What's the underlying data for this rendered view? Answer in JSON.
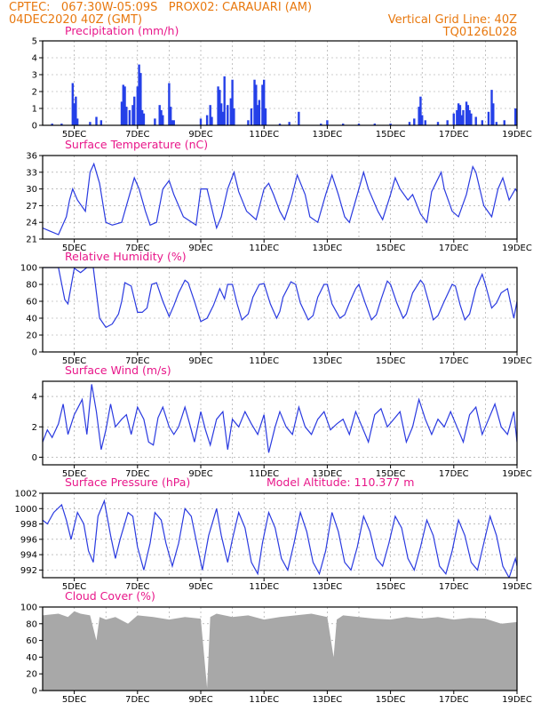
{
  "header": {
    "line1": "CPTEC:   067:30W-05:09S   PROX02: CARAUARI (AM)",
    "line2_left": "04DEC2020 40Z (GMT)",
    "line2_right": "Vertical Grid Line: 40Z",
    "line3_right": "TQ0126L028"
  },
  "annotations": {
    "model_altitude": "Model Altitude: 110.377 m"
  },
  "x_axis": {
    "labels": [
      "5DEC",
      "7DEC",
      "9DEC",
      "11DEC",
      "13DEC",
      "15DEC",
      "17DEC",
      "19DEC"
    ],
    "day_start": 4.0,
    "day_end": 19.0
  },
  "colors": {
    "header": "#e8780e",
    "title": "#e8178a",
    "line": "#2a3ae0",
    "bar": "#2540e8",
    "cloud": "#a8a8a8",
    "grid": "#9a9a9a"
  },
  "chart_data": [
    {
      "type": "bar",
      "title": "Precipitation (mm/h)",
      "ylim": [
        0,
        5
      ],
      "yticks": [
        "0",
        "1",
        "2",
        "3",
        "4",
        "5"
      ],
      "grid": true,
      "bars": [
        {
          "x": 4.3,
          "y": 0.1
        },
        {
          "x": 4.6,
          "y": 0.1
        },
        {
          "x": 4.95,
          "y": 2.5
        },
        {
          "x": 5.0,
          "y": 1.3
        },
        {
          "x": 5.05,
          "y": 1.7
        },
        {
          "x": 5.1,
          "y": 0.4
        },
        {
          "x": 5.5,
          "y": 0.2
        },
        {
          "x": 5.7,
          "y": 0.5
        },
        {
          "x": 5.85,
          "y": 0.3
        },
        {
          "x": 6.5,
          "y": 1.4
        },
        {
          "x": 6.55,
          "y": 2.4
        },
        {
          "x": 6.6,
          "y": 2.3
        },
        {
          "x": 6.65,
          "y": 1.1
        },
        {
          "x": 6.75,
          "y": 0.9
        },
        {
          "x": 6.85,
          "y": 1.2
        },
        {
          "x": 6.9,
          "y": 1.7
        },
        {
          "x": 7.0,
          "y": 2.3
        },
        {
          "x": 7.05,
          "y": 3.6
        },
        {
          "x": 7.1,
          "y": 3.1
        },
        {
          "x": 7.15,
          "y": 0.9
        },
        {
          "x": 7.2,
          "y": 0.7
        },
        {
          "x": 7.55,
          "y": 0.4
        },
        {
          "x": 7.7,
          "y": 1.2
        },
        {
          "x": 7.75,
          "y": 0.9
        },
        {
          "x": 7.8,
          "y": 0.6
        },
        {
          "x": 8.0,
          "y": 2.5
        },
        {
          "x": 8.05,
          "y": 1.1
        },
        {
          "x": 8.1,
          "y": 0.3
        },
        {
          "x": 8.15,
          "y": 0.3
        },
        {
          "x": 9.0,
          "y": 0.4
        },
        {
          "x": 9.2,
          "y": 0.6
        },
        {
          "x": 9.3,
          "y": 1.2
        },
        {
          "x": 9.35,
          "y": 0.5
        },
        {
          "x": 9.55,
          "y": 2.3
        },
        {
          "x": 9.6,
          "y": 2.1
        },
        {
          "x": 9.65,
          "y": 1.3
        },
        {
          "x": 9.7,
          "y": 0.8
        },
        {
          "x": 9.75,
          "y": 2.9
        },
        {
          "x": 9.85,
          "y": 1.2
        },
        {
          "x": 9.95,
          "y": 1.6
        },
        {
          "x": 10.0,
          "y": 2.7
        },
        {
          "x": 10.05,
          "y": 1.0
        },
        {
          "x": 10.5,
          "y": 0.3
        },
        {
          "x": 10.6,
          "y": 1.0
        },
        {
          "x": 10.7,
          "y": 2.7
        },
        {
          "x": 10.75,
          "y": 2.4
        },
        {
          "x": 10.8,
          "y": 1.2
        },
        {
          "x": 10.85,
          "y": 1.5
        },
        {
          "x": 10.95,
          "y": 2.4
        },
        {
          "x": 11.0,
          "y": 2.7
        },
        {
          "x": 11.05,
          "y": 1.0
        },
        {
          "x": 11.5,
          "y": 0.1
        },
        {
          "x": 11.8,
          "y": 0.2
        },
        {
          "x": 12.1,
          "y": 0.8
        },
        {
          "x": 12.8,
          "y": 0.1
        },
        {
          "x": 13.0,
          "y": 0.3
        },
        {
          "x": 13.5,
          "y": 0.1
        },
        {
          "x": 14.0,
          "y": 0.1
        },
        {
          "x": 14.5,
          "y": 0.1
        },
        {
          "x": 15.0,
          "y": 0.1
        },
        {
          "x": 15.6,
          "y": 0.2
        },
        {
          "x": 15.75,
          "y": 0.4
        },
        {
          "x": 15.9,
          "y": 1.1
        },
        {
          "x": 15.95,
          "y": 1.7
        },
        {
          "x": 16.0,
          "y": 0.6
        },
        {
          "x": 16.1,
          "y": 0.3
        },
        {
          "x": 16.5,
          "y": 0.2
        },
        {
          "x": 16.8,
          "y": 0.3
        },
        {
          "x": 17.0,
          "y": 0.7
        },
        {
          "x": 17.1,
          "y": 0.9
        },
        {
          "x": 17.15,
          "y": 1.3
        },
        {
          "x": 17.2,
          "y": 1.2
        },
        {
          "x": 17.25,
          "y": 0.6
        },
        {
          "x": 17.3,
          "y": 0.9
        },
        {
          "x": 17.4,
          "y": 1.4
        },
        {
          "x": 17.45,
          "y": 1.2
        },
        {
          "x": 17.5,
          "y": 0.9
        },
        {
          "x": 17.55,
          "y": 0.7
        },
        {
          "x": 17.7,
          "y": 0.5
        },
        {
          "x": 17.9,
          "y": 0.3
        },
        {
          "x": 18.1,
          "y": 0.8
        },
        {
          "x": 18.2,
          "y": 2.1
        },
        {
          "x": 18.25,
          "y": 1.3
        },
        {
          "x": 18.35,
          "y": 0.2
        },
        {
          "x": 18.6,
          "y": 0.3
        },
        {
          "x": 18.95,
          "y": 1.0
        }
      ]
    },
    {
      "type": "line",
      "title": "Surface Temperature (nC)",
      "ylim": [
        21,
        36
      ],
      "yticks": [
        "21",
        "24",
        "27",
        "30",
        "33",
        "36"
      ],
      "grid": true,
      "x": [
        4.0,
        4.2,
        4.5,
        4.75,
        4.85,
        4.95,
        5.1,
        5.35,
        5.5,
        5.62,
        5.8,
        6.0,
        6.2,
        6.5,
        6.8,
        6.9,
        7.05,
        7.25,
        7.4,
        7.6,
        7.8,
        8.0,
        8.15,
        8.45,
        8.85,
        9.0,
        9.2,
        9.5,
        9.65,
        9.85,
        10.05,
        10.2,
        10.45,
        10.75,
        11.0,
        11.15,
        11.3,
        11.5,
        11.65,
        11.85,
        12.05,
        12.3,
        12.45,
        12.7,
        12.95,
        13.15,
        13.35,
        13.55,
        13.7,
        13.95,
        14.15,
        14.3,
        14.6,
        14.75,
        15.0,
        15.15,
        15.3,
        15.55,
        15.7,
        15.95,
        16.15,
        16.3,
        16.6,
        16.7,
        16.95,
        17.15,
        17.4,
        17.6,
        17.7,
        17.95,
        18.2,
        18.4,
        18.55,
        18.75,
        18.95,
        19.0
      ],
      "y": [
        23,
        22.5,
        21.8,
        25,
        28,
        30,
        28,
        26,
        33,
        34.5,
        31,
        24,
        23.5,
        24,
        30,
        32,
        30,
        26,
        23.5,
        24,
        30,
        31.5,
        29,
        25,
        23.5,
        30,
        30,
        23,
        25,
        30,
        33,
        29.5,
        26,
        24.5,
        30,
        31,
        29,
        26,
        24.5,
        28,
        32.5,
        29,
        25,
        24,
        29,
        32.5,
        29,
        25,
        24,
        29,
        33,
        30,
        26,
        24.5,
        29,
        32,
        30,
        28,
        29,
        25.5,
        24,
        29.5,
        33,
        30,
        26,
        25,
        29,
        34,
        33,
        27,
        25,
        30,
        32,
        28,
        30,
        29.5
      ]
    },
    {
      "type": "line",
      "title": "Relative Humidity (%)",
      "ylim": [
        0,
        100
      ],
      "yticks": [
        "0",
        "20",
        "40",
        "60",
        "80",
        "100"
      ],
      "grid": true,
      "x": [
        4.0,
        4.2,
        4.5,
        4.7,
        4.8,
        5.0,
        5.2,
        5.4,
        5.6,
        5.8,
        6.0,
        6.2,
        6.4,
        6.5,
        6.6,
        6.8,
        7.0,
        7.15,
        7.3,
        7.45,
        7.6,
        7.8,
        8.0,
        8.15,
        8.3,
        8.5,
        8.6,
        8.8,
        9.0,
        9.2,
        9.4,
        9.6,
        9.75,
        9.85,
        10.0,
        10.15,
        10.3,
        10.5,
        10.65,
        10.85,
        11.0,
        11.2,
        11.4,
        11.5,
        11.6,
        11.85,
        12.0,
        12.15,
        12.4,
        12.55,
        12.7,
        12.9,
        13.0,
        13.15,
        13.4,
        13.55,
        13.7,
        13.9,
        14.0,
        14.2,
        14.4,
        14.55,
        14.7,
        14.9,
        15.0,
        15.2,
        15.4,
        15.5,
        15.7,
        15.95,
        16.05,
        16.2,
        16.35,
        16.5,
        16.7,
        16.95,
        17.05,
        17.2,
        17.35,
        17.5,
        17.7,
        17.9,
        18.0,
        18.2,
        18.35,
        18.5,
        18.7,
        18.9,
        19.0
      ],
      "y": [
        100,
        100,
        100,
        62,
        57,
        99,
        94,
        100,
        100,
        40,
        29,
        33,
        45,
        60,
        82,
        78,
        47,
        47,
        52,
        80,
        82,
        60,
        42,
        55,
        70,
        85,
        82,
        60,
        36,
        40,
        55,
        75,
        63,
        80,
        80,
        57,
        38,
        45,
        65,
        80,
        81,
        57,
        40,
        48,
        65,
        83,
        80,
        58,
        38,
        43,
        65,
        80,
        80,
        57,
        40,
        44,
        58,
        75,
        80,
        58,
        38,
        44,
        62,
        84,
        80,
        58,
        40,
        45,
        70,
        85,
        80,
        60,
        38,
        43,
        60,
        80,
        78,
        56,
        38,
        45,
        75,
        92,
        80,
        52,
        58,
        70,
        75,
        40,
        60
      ]
    },
    {
      "type": "line",
      "title": "Surface Wind (m/s)",
      "ylim": [
        -0.5,
        5
      ],
      "yticks": [
        "0",
        "2",
        "4"
      ],
      "grid": true,
      "x": [
        4.0,
        4.15,
        4.3,
        4.5,
        4.65,
        4.8,
        5.0,
        5.1,
        5.25,
        5.4,
        5.55,
        5.7,
        5.85,
        6.0,
        6.15,
        6.3,
        6.5,
        6.65,
        6.8,
        7.0,
        7.2,
        7.35,
        7.5,
        7.65,
        7.8,
        8.0,
        8.15,
        8.3,
        8.5,
        8.65,
        8.8,
        9.0,
        9.15,
        9.3,
        9.5,
        9.7,
        9.85,
        10.0,
        10.2,
        10.4,
        10.6,
        10.8,
        11.0,
        11.15,
        11.35,
        11.5,
        11.7,
        11.9,
        12.1,
        12.3,
        12.5,
        12.7,
        12.9,
        13.1,
        13.3,
        13.5,
        13.7,
        13.9,
        14.1,
        14.3,
        14.5,
        14.7,
        14.9,
        15.1,
        15.3,
        15.5,
        15.7,
        15.9,
        16.1,
        16.3,
        16.5,
        16.7,
        16.9,
        17.1,
        17.3,
        17.5,
        17.7,
        17.9,
        18.1,
        18.3,
        18.5,
        18.7,
        18.9,
        19.0
      ],
      "y": [
        1.0,
        1.8,
        1.3,
        2.2,
        3.5,
        1.5,
        2.8,
        3.2,
        3.8,
        1.5,
        4.8,
        3.0,
        0.5,
        1.8,
        3.5,
        2.0,
        2.5,
        2.8,
        1.5,
        3.3,
        2.5,
        1.0,
        0.8,
        2.6,
        3.3,
        2.0,
        1.5,
        2.0,
        3.3,
        2.2,
        1.0,
        3.0,
        1.8,
        0.8,
        2.5,
        3.0,
        0.5,
        2.5,
        2.0,
        3.0,
        2.2,
        1.5,
        2.8,
        0.3,
        2.0,
        3.0,
        2.0,
        1.5,
        3.3,
        2.0,
        1.5,
        2.5,
        3.0,
        1.8,
        2.2,
        2.5,
        1.5,
        3.0,
        2.0,
        1.0,
        2.8,
        3.2,
        2.0,
        2.5,
        3.0,
        1.0,
        2.0,
        3.8,
        2.5,
        1.5,
        2.5,
        2.0,
        3.0,
        2.0,
        1.0,
        2.8,
        3.3,
        1.5,
        2.5,
        3.5,
        2.0,
        1.5,
        3.0,
        1.0
      ]
    },
    {
      "type": "line",
      "title": "Surface Pressure (hPa)",
      "ylim": [
        991,
        1002
      ],
      "yticks": [
        "992",
        "994",
        "996",
        "998",
        "1000",
        "1002"
      ],
      "grid": true,
      "x": [
        4.0,
        4.15,
        4.35,
        4.6,
        4.75,
        4.9,
        5.1,
        5.3,
        5.45,
        5.6,
        5.75,
        5.95,
        6.15,
        6.3,
        6.45,
        6.7,
        6.85,
        7.0,
        7.2,
        7.4,
        7.55,
        7.75,
        7.9,
        8.1,
        8.3,
        8.5,
        8.7,
        8.9,
        9.05,
        9.25,
        9.5,
        9.65,
        9.85,
        10.0,
        10.2,
        10.4,
        10.6,
        10.8,
        10.95,
        11.15,
        11.35,
        11.55,
        11.75,
        11.95,
        12.15,
        12.35,
        12.55,
        12.75,
        12.95,
        13.15,
        13.35,
        13.55,
        13.75,
        13.95,
        14.15,
        14.35,
        14.55,
        14.75,
        14.95,
        15.15,
        15.35,
        15.55,
        15.75,
        15.95,
        16.15,
        16.35,
        16.55,
        16.75,
        16.95,
        17.15,
        17.35,
        17.55,
        17.75,
        17.95,
        18.15,
        18.35,
        18.55,
        18.75,
        18.95,
        19.0
      ],
      "y": [
        998.5,
        998.0,
        999.5,
        1000.5,
        998.5,
        996.0,
        999.5,
        998.0,
        994.5,
        993.0,
        999.0,
        1001.0,
        996.5,
        993.5,
        996.0,
        999.5,
        999.0,
        995.0,
        992.0,
        995.5,
        999.5,
        998.5,
        995.5,
        992.5,
        995.5,
        1000.0,
        999.0,
        995.0,
        992.0,
        996.5,
        1000.0,
        996.5,
        993.0,
        996.0,
        999.5,
        997.5,
        993.0,
        991.5,
        995.5,
        999.5,
        997.5,
        993.5,
        992.0,
        995.5,
        999.5,
        997.0,
        993.0,
        991.5,
        994.5,
        999.5,
        997.0,
        993.0,
        992.0,
        995.0,
        999.0,
        997.0,
        993.5,
        992.5,
        995.5,
        999.0,
        997.5,
        993.5,
        992.0,
        995.0,
        998.5,
        996.5,
        992.5,
        991.5,
        994.5,
        998.5,
        996.5,
        993.0,
        992.0,
        995.5,
        999.0,
        996.5,
        992.5,
        991.0,
        993.5,
        992.5
      ]
    },
    {
      "type": "area",
      "title": "Cloud Cover (%)",
      "ylim": [
        0,
        100
      ],
      "yticks": [
        "0",
        "20",
        "40",
        "60",
        "80",
        "100"
      ],
      "grid": true,
      "x": [
        4.0,
        4.5,
        4.8,
        5.0,
        5.2,
        5.5,
        5.7,
        5.8,
        6.0,
        6.3,
        6.7,
        7.0,
        7.5,
        8.0,
        8.5,
        9.0,
        9.2,
        9.3,
        9.5,
        10.0,
        10.5,
        11.0,
        11.5,
        12.0,
        12.5,
        13.0,
        13.2,
        13.3,
        13.5,
        14.0,
        14.5,
        15.0,
        15.5,
        16.0,
        16.5,
        17.0,
        17.5,
        18.0,
        18.5,
        19.0
      ],
      "y": [
        90,
        92,
        88,
        95,
        92,
        90,
        60,
        88,
        85,
        88,
        80,
        90,
        88,
        85,
        88,
        86,
        3,
        88,
        92,
        88,
        90,
        85,
        88,
        90,
        92,
        88,
        40,
        85,
        90,
        88,
        86,
        85,
        88,
        86,
        88,
        85,
        87,
        86,
        80,
        82
      ]
    }
  ]
}
